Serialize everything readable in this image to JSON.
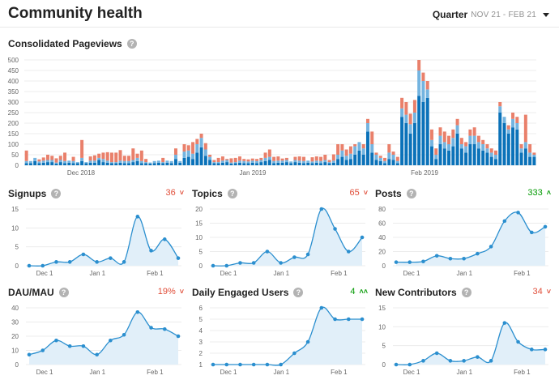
{
  "header": {
    "title": "Community health",
    "period_label": "Quarter",
    "period_range": "NOV 21 - FEB 21"
  },
  "colors": {
    "series_dark": "#0b72b9",
    "series_light": "#74b4e0",
    "series_orange": "#e9806b",
    "mini_line": "#2b8fcf",
    "mini_fill": "#e1eff9",
    "down": "#e04e39",
    "up": "#009900"
  },
  "pageviews": {
    "title": "Consolidated Pageviews",
    "help_icon": "question-circle-icon",
    "y_ticks": [
      "0",
      "50",
      "100",
      "150",
      "200",
      "250",
      "300",
      "350",
      "400",
      "450",
      "500"
    ],
    "x_labels": [
      "Dec 2018",
      "Jan 2019",
      "Feb 2019"
    ],
    "chart_data": {
      "type": "bar",
      "stacked": true,
      "xlabel": "",
      "ylabel": "",
      "ylim": [
        0,
        500
      ],
      "x_tick_labels": [
        "Dec 2018",
        "Jan 2019",
        "Feb 2019"
      ],
      "bar_count": 120,
      "series": [
        {
          "color": "#0b72b9",
          "values": [
            10,
            10,
            20,
            10,
            12,
            15,
            15,
            8,
            15,
            10,
            12,
            10,
            10,
            20,
            10,
            12,
            12,
            25,
            15,
            12,
            10,
            10,
            12,
            10,
            10,
            15,
            20,
            10,
            10,
            8,
            10,
            12,
            10,
            12,
            10,
            30,
            12,
            35,
            40,
            30,
            60,
            85,
            45,
            25,
            10,
            10,
            12,
            15,
            8,
            10,
            12,
            10,
            10,
            12,
            10,
            15,
            20,
            25,
            10,
            12,
            12,
            15,
            10,
            15,
            12,
            10,
            12,
            10,
            12,
            10,
            15,
            10,
            12,
            30,
            40,
            25,
            30,
            50,
            70,
            50,
            160,
            60,
            25,
            20,
            10,
            30,
            25,
            10,
            230,
            200,
            150,
            200,
            330,
            300,
            320,
            90,
            30,
            100,
            80,
            70,
            90,
            150,
            80,
            60,
            100,
            100,
            80,
            70,
            60,
            40,
            30,
            250,
            200,
            150,
            180,
            170,
            60,
            80,
            40,
            40
          ]
        },
        {
          "color": "#74b4e0",
          "values": [
            10,
            10,
            15,
            8,
            10,
            10,
            10,
            5,
            10,
            10,
            10,
            10,
            5,
            15,
            5,
            10,
            10,
            10,
            15,
            10,
            5,
            5,
            10,
            10,
            10,
            10,
            15,
            10,
            5,
            5,
            10,
            10,
            5,
            10,
            10,
            20,
            8,
            30,
            30,
            25,
            40,
            45,
            30,
            15,
            5,
            5,
            10,
            10,
            5,
            5,
            10,
            10,
            8,
            10,
            10,
            10,
            15,
            15,
            10,
            10,
            10,
            10,
            8,
            10,
            10,
            10,
            10,
            8,
            10,
            10,
            10,
            5,
            10,
            20,
            30,
            20,
            25,
            40,
            40,
            30,
            40,
            40,
            25,
            15,
            10,
            30,
            25,
            10,
            40,
            40,
            45,
            50,
            120,
            100,
            40,
            30,
            20,
            40,
            30,
            30,
            40,
            40,
            20,
            30,
            40,
            40,
            30,
            30,
            20,
            20,
            20,
            30,
            30,
            20,
            40,
            30,
            20,
            30,
            20,
            10
          ]
        },
        {
          "color": "#e9806b",
          "values": [
            50,
            0,
            0,
            10,
            15,
            25,
            20,
            20,
            20,
            40,
            0,
            20,
            0,
            85,
            0,
            20,
            25,
            20,
            30,
            40,
            45,
            45,
            50,
            25,
            25,
            55,
            20,
            50,
            15,
            0,
            0,
            0,
            20,
            0,
            0,
            30,
            0,
            35,
            25,
            55,
            25,
            20,
            30,
            10,
            10,
            20,
            20,
            5,
            20,
            20,
            20,
            10,
            10,
            10,
            10,
            10,
            25,
            35,
            20,
            20,
            10,
            10,
            0,
            15,
            20,
            20,
            0,
            20,
            20,
            20,
            25,
            10,
            30,
            50,
            30,
            30,
            35,
            10,
            0,
            20,
            20,
            60,
            10,
            10,
            15,
            40,
            15,
            20,
            50,
            60,
            50,
            60,
            50,
            40,
            40,
            50,
            30,
            40,
            50,
            40,
            40,
            30,
            30,
            20,
            30,
            40,
            30,
            20,
            20,
            20,
            20,
            20,
            0,
            20,
            30,
            30,
            20,
            130,
            40,
            10
          ]
        }
      ]
    }
  },
  "minis": [
    {
      "title": "Signups",
      "value": "36",
      "trend": "down",
      "y_ticks": [
        "0",
        "5",
        "10",
        "15"
      ],
      "ymax": 15,
      "x_labels": [
        "Dec 1",
        "Jan 1",
        "Feb 1"
      ],
      "chart_data": {
        "type": "area",
        "ylim": [
          0,
          15
        ],
        "points": [
          0,
          0,
          1,
          1,
          3,
          1,
          2,
          1,
          13,
          4,
          7,
          2
        ]
      }
    },
    {
      "title": "Topics",
      "value": "65",
      "trend": "down",
      "y_ticks": [
        "0",
        "5",
        "10",
        "15",
        "20"
      ],
      "ymax": 20,
      "x_labels": [
        "Dec 1",
        "Jan 1",
        "Feb 1"
      ],
      "chart_data": {
        "type": "area",
        "ylim": [
          0,
          20
        ],
        "points": [
          0,
          0,
          1,
          1,
          5,
          1,
          3,
          4,
          20,
          13,
          5,
          10
        ]
      }
    },
    {
      "title": "Posts",
      "value": "333",
      "trend": "up",
      "y_ticks": [
        "0",
        "20",
        "40",
        "60",
        "80"
      ],
      "ymax": 80,
      "x_labels": [
        "Dec 1",
        "Jan 1",
        "Feb 1"
      ],
      "chart_data": {
        "type": "area",
        "ylim": [
          0,
          80
        ],
        "points": [
          5,
          5,
          6,
          14,
          10,
          10,
          17,
          27,
          63,
          75,
          47,
          55
        ]
      }
    },
    {
      "title": "DAU/MAU",
      "value": "19%",
      "trend": "down",
      "y_ticks": [
        "0",
        "10",
        "20",
        "30",
        "40"
      ],
      "ymax": 40,
      "x_labels": [
        "Dec 1",
        "Jan 1",
        "Feb 1"
      ],
      "chart_data": {
        "type": "area",
        "ylim": [
          0,
          40
        ],
        "points": [
          7,
          10,
          17,
          13,
          13,
          7,
          17,
          21,
          37,
          26,
          25,
          20
        ]
      }
    },
    {
      "title": "Daily Engaged Users",
      "value": "4",
      "trend": "up2",
      "y_ticks": [
        "1",
        "2",
        "3",
        "4",
        "5",
        "6"
      ],
      "ymin": 1,
      "ymax": 6,
      "x_labels": [
        "Dec 1",
        "Jan 1",
        "Feb 1"
      ],
      "chart_data": {
        "type": "area",
        "ylim": [
          1,
          6
        ],
        "points": [
          1,
          1,
          1,
          1,
          1,
          1,
          2,
          3,
          6,
          5,
          5,
          5
        ]
      }
    },
    {
      "title": "New Contributors",
      "value": "34",
      "trend": "down",
      "y_ticks": [
        "0",
        "5",
        "10",
        "15"
      ],
      "ymax": 15,
      "x_labels": [
        "Dec 1",
        "Jan 1",
        "Feb 1"
      ],
      "chart_data": {
        "type": "area",
        "ylim": [
          0,
          15
        ],
        "points": [
          0,
          0,
          1,
          3,
          1,
          1,
          2,
          1,
          11,
          6,
          4,
          4
        ]
      }
    }
  ]
}
